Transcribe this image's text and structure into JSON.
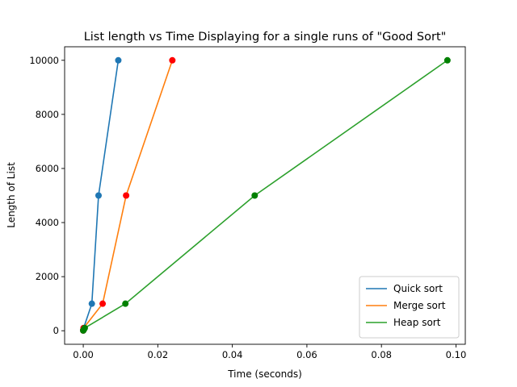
{
  "chart_data": {
    "type": "line",
    "title": "List length vs Time Displaying for a single runs of \"Good Sort\"",
    "xlabel": "Time (seconds)",
    "ylabel": "Length of List",
    "xlim": [
      -0.005,
      0.1025
    ],
    "ylim": [
      -500,
      10500
    ],
    "xticks": [
      0.0,
      0.02,
      0.04,
      0.06,
      0.08,
      0.1
    ],
    "xtick_labels": [
      "0.00",
      "0.02",
      "0.04",
      "0.06",
      "0.08",
      "0.10"
    ],
    "yticks": [
      0,
      2000,
      4000,
      6000,
      8000,
      10000
    ],
    "ytick_labels": [
      "0",
      "2000",
      "4000",
      "6000",
      "8000",
      "10000"
    ],
    "grid": false,
    "legend_position": "lower-right",
    "series": [
      {
        "name": "Quick sort",
        "line_color": "#1f77b4",
        "marker_color": "#1f77b4",
        "x": [
          0.0,
          5e-05,
          0.0001,
          0.0023,
          0.0041,
          0.0094
        ],
        "y": [
          10,
          50,
          100,
          1000,
          5000,
          10000
        ]
      },
      {
        "name": "Merge sort",
        "line_color": "#ff7f0e",
        "marker_color": "#ff0000",
        "x": [
          0.0,
          5e-05,
          0.0001,
          0.0052,
          0.0115,
          0.0239
        ],
        "y": [
          10,
          50,
          100,
          1000,
          5000,
          10000
        ]
      },
      {
        "name": "Heap sort",
        "line_color": "#2ca02c",
        "marker_color": "#008000",
        "x": [
          0.0,
          0.0002,
          0.0004,
          0.0113,
          0.046,
          0.0977
        ],
        "y": [
          10,
          50,
          100,
          1000,
          5000,
          10000
        ]
      }
    ]
  }
}
